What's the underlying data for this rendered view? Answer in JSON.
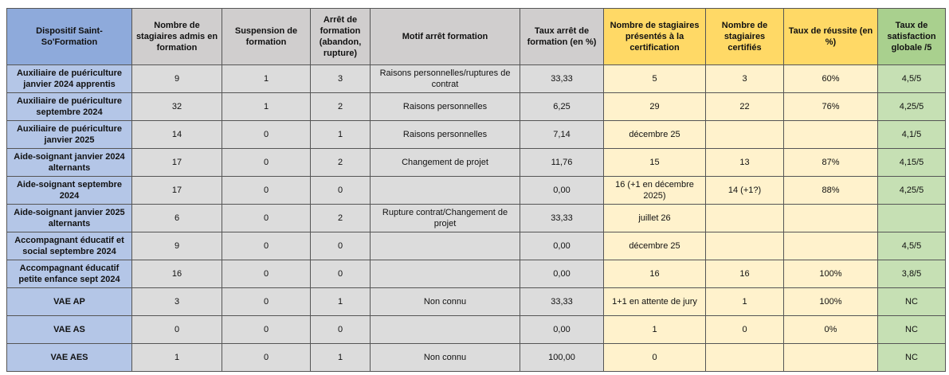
{
  "table": {
    "header": [
      "Dispositif Saint-So'Formation",
      "Nombre de stagiaires admis en formation",
      "Suspension de formation",
      "Arrêt de formation (abandon, rupture)",
      "Motif arrêt formation",
      "Taux arrêt de formation (en %)",
      "Nombre de stagiaires présentés à la certification",
      "Nombre de stagiaires certifiés",
      "Taux de réussite (en %)",
      "Taux de satisfaction globale /5"
    ],
    "rows": [
      [
        "Auxiliaire de puériculture janvier 2024 apprentis",
        "9",
        "1",
        "3",
        "Raisons personnelles/ruptures de contrat",
        "33,33",
        "5",
        "3",
        "60%",
        "4,5/5"
      ],
      [
        "Auxiliaire de puériculture septembre 2024",
        "32",
        "1",
        "2",
        "Raisons personnelles",
        "6,25",
        "29",
        "22",
        "76%",
        "4,25/5"
      ],
      [
        "Auxiliaire de puériculture janvier 2025",
        "14",
        "0",
        "1",
        "Raisons personnelles",
        "7,14",
        "décembre 25",
        null,
        null,
        "4,1/5"
      ],
      [
        "Aide-soignant janvier 2024 alternants",
        "17",
        "0",
        "2",
        "Changement de projet",
        "11,76",
        "15",
        "13",
        "87%",
        "4,15/5"
      ],
      [
        "Aide-soignant septembre 2024",
        "17",
        "0",
        "0",
        null,
        "0,00",
        "16 (+1 en décembre 2025)",
        "14 (+1?)",
        "88%",
        "4,25/5"
      ],
      [
        "Aide-soignant janvier 2025 alternants",
        "6",
        "0",
        "2",
        "Rupture contrat/Changement de projet",
        "33,33",
        "juillet 26",
        null,
        null,
        null
      ],
      [
        "Accompagnant éducatif et social septembre 2024",
        "9",
        "0",
        "0",
        null,
        "0,00",
        "décembre 25",
        null,
        null,
        "4,5/5"
      ],
      [
        "Accompagnant éducatif petite enfance sept 2024",
        "16",
        "0",
        "0",
        null,
        "0,00",
        "16",
        "16",
        "100%",
        "3,8/5"
      ],
      [
        "VAE AP",
        "3",
        "0",
        "1",
        "Non connu",
        "33,33",
        "1+1 en attente de jury",
        "1",
        "100%",
        "NC"
      ],
      [
        "VAE AS",
        "0",
        "0",
        "0",
        null,
        "0,00",
        "1",
        "0",
        "0%",
        "NC"
      ],
      [
        "VAE AES",
        "1",
        "0",
        "1",
        "Non connu",
        "100,00",
        "0",
        null,
        null,
        "NC"
      ]
    ]
  }
}
